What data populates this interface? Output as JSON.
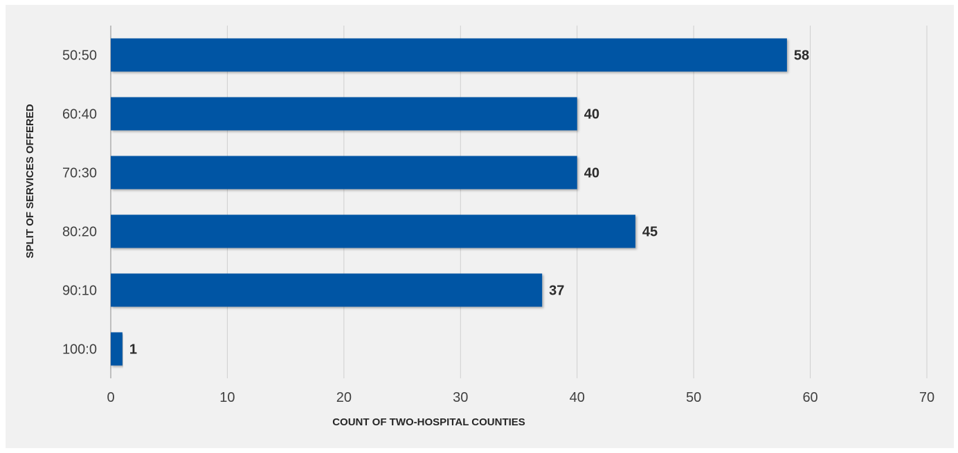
{
  "chart_data": {
    "type": "bar",
    "orientation": "horizontal",
    "categories": [
      "50:50",
      "60:40",
      "70:30",
      "80:20",
      "90:10",
      "100:0"
    ],
    "values": [
      58,
      40,
      40,
      45,
      37,
      1
    ],
    "xlabel": "COUNT OF TWO-HOSPITAL COUNTIES",
    "ylabel": "SPLIT OF SERVICES OFFERED",
    "xlim": [
      0,
      70
    ],
    "xticks": [
      0,
      10,
      20,
      30,
      40,
      50,
      60,
      70
    ],
    "grid": true,
    "bar_color": "#0055a4"
  }
}
